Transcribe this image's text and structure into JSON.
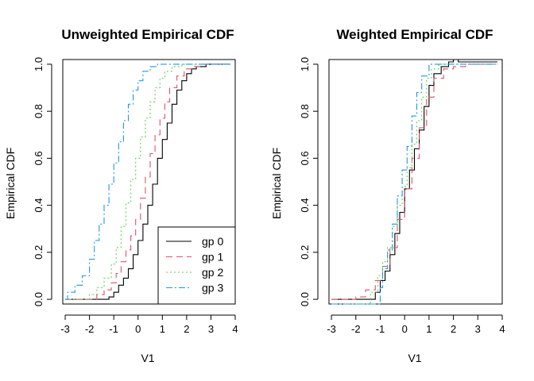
{
  "chart_data": [
    {
      "type": "line",
      "step": true,
      "title": "Unweighted Empirical CDF",
      "xlabel": "V1",
      "ylabel": "Empirical CDF",
      "xlim": [
        -3.1,
        4
      ],
      "ylim": [
        -0.02,
        1.02
      ],
      "xticks": [
        "-3",
        "-2",
        "-1",
        "0",
        "1",
        "2",
        "3",
        "4"
      ],
      "yticks": [
        "0.0",
        "0.2",
        "0.4",
        "0.6",
        "0.8",
        "1.0"
      ],
      "legend": {
        "position": "bottom-right",
        "entries": [
          "gp 0",
          "gp 1",
          "gp 2",
          "gp 3"
        ]
      },
      "series": [
        {
          "name": "gp 0",
          "color": "#000000",
          "dash": "",
          "x": [
            -3,
            -1.5,
            -1.2,
            -1.0,
            -0.8,
            -0.6,
            -0.4,
            -0.2,
            0.0,
            0.2,
            0.4,
            0.6,
            0.8,
            1.0,
            1.2,
            1.4,
            1.6,
            1.8,
            2.0,
            2.2,
            2.4,
            2.6,
            2.8,
            3.0,
            3.8
          ],
          "y": [
            0.0,
            0.0,
            0.01,
            0.03,
            0.06,
            0.09,
            0.13,
            0.19,
            0.25,
            0.32,
            0.4,
            0.49,
            0.6,
            0.68,
            0.75,
            0.83,
            0.89,
            0.93,
            0.96,
            0.98,
            0.99,
            0.99,
            1.0,
            1.0,
            1.0
          ]
        },
        {
          "name": "gp 1",
          "color": "#DF536B",
          "dash": "8,5",
          "x": [
            -3,
            -2.0,
            -1.7,
            -1.4,
            -1.1,
            -0.9,
            -0.7,
            -0.5,
            -0.3,
            -0.1,
            0.1,
            0.3,
            0.5,
            0.7,
            0.9,
            1.1,
            1.3,
            1.6,
            1.9,
            2.2,
            2.6,
            3.0,
            3.8
          ],
          "y": [
            0.0,
            0.0,
            0.02,
            0.04,
            0.07,
            0.11,
            0.16,
            0.21,
            0.27,
            0.34,
            0.43,
            0.52,
            0.62,
            0.7,
            0.77,
            0.84,
            0.9,
            0.95,
            0.98,
            0.99,
            1.0,
            1.0,
            1.0
          ]
        },
        {
          "name": "gp 2",
          "color": "#61D04F",
          "dash": "2,3",
          "x": [
            -3,
            -2.5,
            -2.0,
            -1.7,
            -1.4,
            -1.1,
            -0.9,
            -0.7,
            -0.5,
            -0.3,
            -0.1,
            0.1,
            0.3,
            0.5,
            0.7,
            0.9,
            1.1,
            1.4,
            1.8,
            2.2,
            3.8
          ],
          "y": [
            0.0,
            0.0,
            0.02,
            0.05,
            0.09,
            0.15,
            0.22,
            0.31,
            0.41,
            0.51,
            0.6,
            0.69,
            0.77,
            0.84,
            0.9,
            0.94,
            0.97,
            0.99,
            1.0,
            1.0,
            1.0
          ]
        },
        {
          "name": "gp 3",
          "color": "#2297E6",
          "dash": "8,3,2,3",
          "x": [
            -3,
            -2.9,
            -2.6,
            -2.3,
            -2.0,
            -1.8,
            -1.6,
            -1.4,
            -1.2,
            -1.0,
            -0.8,
            -0.6,
            -0.4,
            -0.2,
            0.0,
            0.2,
            0.5,
            0.8,
            3.8
          ],
          "y": [
            0.0,
            0.03,
            0.06,
            0.1,
            0.17,
            0.25,
            0.32,
            0.4,
            0.49,
            0.58,
            0.67,
            0.76,
            0.83,
            0.89,
            0.93,
            0.97,
            0.99,
            1.0,
            1.0
          ]
        }
      ]
    },
    {
      "type": "line",
      "step": true,
      "title": "Weighted Empirical CDF",
      "xlabel": "V1",
      "ylabel": "Empirical CDF",
      "xlim": [
        -3.1,
        4
      ],
      "ylim": [
        -0.02,
        1.02
      ],
      "xticks": [
        "-3",
        "-2",
        "-1",
        "0",
        "1",
        "2",
        "3",
        "4"
      ],
      "yticks": [
        "0.0",
        "0.2",
        "0.4",
        "0.6",
        "0.8",
        "1.0"
      ],
      "series": [
        {
          "name": "gp 0",
          "color": "#000000",
          "dash": "",
          "x": [
            -3,
            -1.5,
            -1.2,
            -1.0,
            -0.8,
            -0.6,
            -0.4,
            -0.2,
            0.0,
            0.2,
            0.4,
            0.6,
            0.8,
            1.0,
            1.2,
            1.5,
            1.8,
            2.0,
            2.2,
            2.5,
            3.8
          ],
          "y": [
            0.0,
            0.0,
            0.03,
            0.08,
            0.12,
            0.19,
            0.28,
            0.37,
            0.47,
            0.55,
            0.64,
            0.72,
            0.82,
            0.91,
            0.96,
            0.99,
            1.01,
            1.02,
            1.01,
            1.01,
            1.01
          ]
        },
        {
          "name": "gp 1",
          "color": "#DF536B",
          "dash": "8,5",
          "x": [
            -3,
            -2.0,
            -1.6,
            -1.2,
            -0.9,
            -0.6,
            -0.3,
            0.0,
            0.3,
            0.6,
            0.9,
            1.2,
            1.6,
            2.0,
            2.5,
            3.8
          ],
          "y": [
            0.0,
            0.01,
            0.04,
            0.08,
            0.14,
            0.22,
            0.34,
            0.47,
            0.6,
            0.73,
            0.86,
            0.94,
            0.98,
            0.99,
            1.0,
            1.0
          ]
        },
        {
          "name": "gp 2",
          "color": "#61D04F",
          "dash": "2,3",
          "x": [
            -3,
            -1.7,
            -1.4,
            -1.1,
            -0.9,
            -0.7,
            -0.5,
            -0.3,
            -0.1,
            0.1,
            0.3,
            0.5,
            0.7,
            0.9,
            1.1,
            1.4,
            3.8
          ],
          "y": [
            -0.02,
            -0.02,
            0.03,
            0.1,
            0.16,
            0.22,
            0.31,
            0.4,
            0.48,
            0.56,
            0.66,
            0.76,
            0.86,
            0.94,
            0.98,
            1.0,
            1.0
          ]
        },
        {
          "name": "gp 3",
          "color": "#2297E6",
          "dash": "8,3,2,3",
          "x": [
            -3,
            -1.2,
            -1.0,
            -0.9,
            -0.7,
            -0.5,
            -0.3,
            -0.1,
            0.1,
            0.3,
            0.5,
            0.7,
            1.0,
            3.8
          ],
          "y": [
            -0.02,
            -0.02,
            0.05,
            0.13,
            0.21,
            0.32,
            0.44,
            0.55,
            0.65,
            0.78,
            0.88,
            0.95,
            1.0,
            1.0
          ]
        }
      ]
    }
  ]
}
